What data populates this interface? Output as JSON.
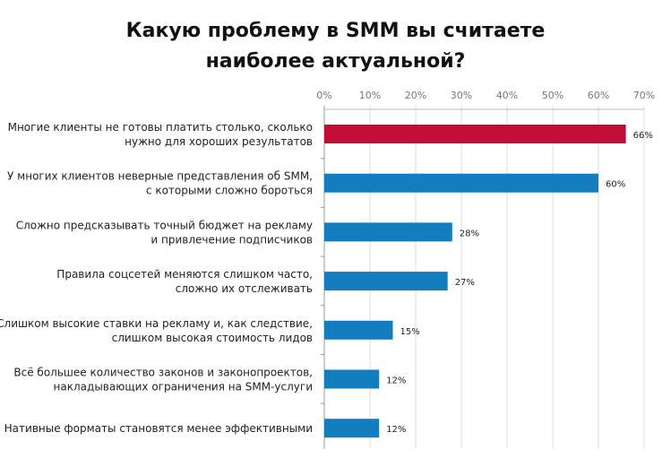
{
  "chart_data": {
    "type": "bar",
    "orientation": "horizontal",
    "title_lines": [
      "Какую проблему в SMM вы считаете",
      "наиболее актуальной?"
    ],
    "categories": [
      [
        "Многие клиенты не готовы платить столько, сколько",
        "нужно для хороших результатов"
      ],
      [
        "У многих клиентов неверные представления об SMM,",
        "с которыми сложно бороться"
      ],
      [
        "Сложно предсказывать точный бюджет на рекламу",
        "и привлечение подписчиков"
      ],
      [
        "Правила соцсетей меняются слишком часто,",
        "сложно их отслеживать"
      ],
      [
        "Слишком высокие ставки на рекламу и, как следствие,",
        "слишком высокая стоимость лидов"
      ],
      [
        "Всё большее количество законов и законопроектов,",
        "накладывающих ограничения на SMM-услуги"
      ],
      [
        "Нативные форматы становятся менее эффективными"
      ]
    ],
    "values": [
      66,
      60,
      28,
      27,
      15,
      12,
      12
    ],
    "data_labels": [
      "66%",
      "60%",
      "28%",
      "27%",
      "15%",
      "12%",
      "12%"
    ],
    "xlim": [
      0,
      70
    ],
    "ticks": [
      "0%",
      "10%",
      "20%",
      "30%",
      "40%",
      "50%",
      "60%",
      "70%"
    ],
    "tick_values": [
      0,
      10,
      20,
      30,
      40,
      50,
      60,
      70
    ],
    "axis_position": "top",
    "grid": true,
    "colors": {
      "highlight": "#c20e36",
      "default": "#137dbf",
      "grid": "#dcdcdc"
    },
    "highlight_index": 0
  }
}
